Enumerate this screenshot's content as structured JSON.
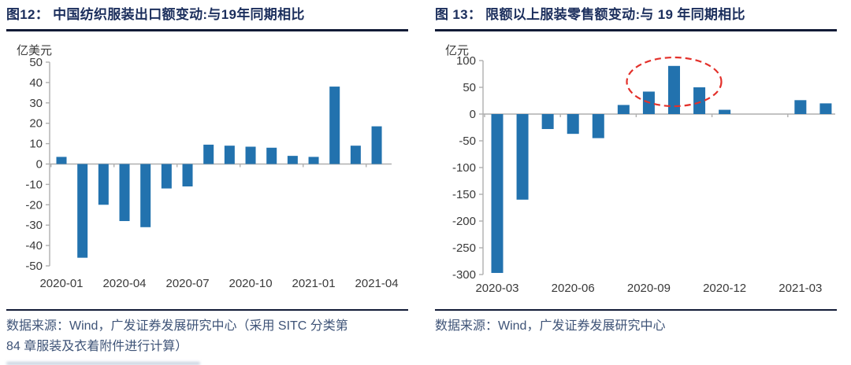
{
  "colors": {
    "navy": "#1B2E5C",
    "rule": "#121B36",
    "src": "#3E5377",
    "bar": "#2272AE",
    "axis_text": "#3A3A3A",
    "axis_line": "#AFAFAF",
    "red": "#E3312B"
  },
  "chart_data": [
    {
      "type": "bar",
      "title": "图12：  中国纺织服装出口额变动:与19年同期相比",
      "ylabel": "亿美元",
      "xlabel": "",
      "ylim": [
        -50,
        50
      ],
      "ytick_step": 10,
      "grid": false,
      "legend": null,
      "x": [
        "2020-01",
        "2020-02",
        "2020-03",
        "2020-04",
        "2020-05",
        "2020-06",
        "2020-07",
        "2020-08",
        "2020-09",
        "2020-10",
        "2020-11",
        "2020-12",
        "2021-01",
        "2021-02",
        "2021-03",
        "2021-04"
      ],
      "values": [
        3.5,
        -46,
        -20,
        -28,
        -31,
        -12,
        -11,
        9.5,
        9,
        8.5,
        8,
        4,
        3.5,
        38,
        9,
        18.5
      ],
      "xtick_labels": [
        "2020-01",
        "2020-04",
        "2020-07",
        "2020-10",
        "2021-01",
        "2021-04"
      ]
    },
    {
      "type": "bar",
      "title": "图 13：  限额以上服装零售额变动:与 19 年同期相比",
      "ylabel": "亿元",
      "xlabel": "",
      "ylim": [
        -300,
        100
      ],
      "ytick_step": 50,
      "grid": false,
      "legend": null,
      "x": [
        "2020-03",
        "2020-04",
        "2020-05",
        "2020-06",
        "2020-07",
        "2020-08",
        "2020-09",
        "2020-10",
        "2020-11",
        "2020-12",
        "2021-01",
        "2021-02",
        "2021-03",
        "2021-04"
      ],
      "values": [
        -297,
        -160,
        -28,
        -37,
        -45,
        17,
        42,
        90,
        50,
        8,
        null,
        null,
        26,
        20
      ],
      "xtick_labels": [
        "2020-03",
        "2020-06",
        "2020-09",
        "2020-12",
        "2021-03"
      ],
      "annotation": {
        "shape": "dashed-ellipse",
        "color_ref": "red",
        "highlight_months": [
          "2020-09",
          "2020-10",
          "2020-11"
        ]
      }
    }
  ],
  "figures": [
    {
      "source_lines": [
        "数据来源：Wind，广发证券发展研究中心（采用 SITC 分类第",
        "84 章服装及衣着附件进行计算）"
      ]
    },
    {
      "source_lines": [
        "数据来源：Wind，广发证券发展研究中心"
      ]
    }
  ]
}
